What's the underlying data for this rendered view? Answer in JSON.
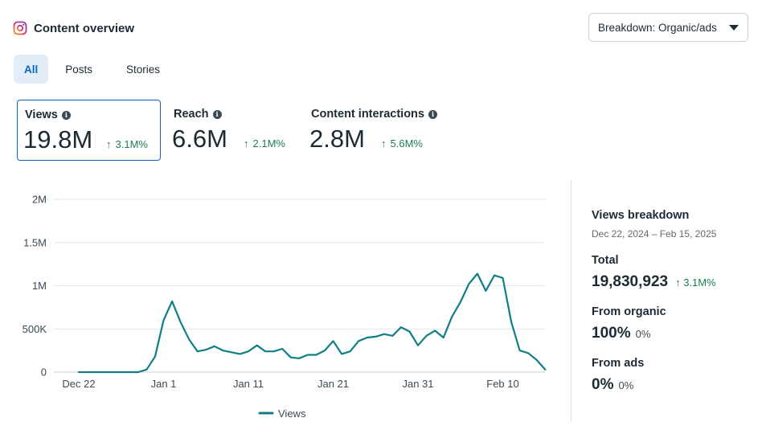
{
  "header": {
    "title": "Content overview",
    "icon": "instagram-icon"
  },
  "breakdown": {
    "label": "Breakdown: Organic/ads"
  },
  "tabs": [
    {
      "label": "All",
      "active": true
    },
    {
      "label": "Posts",
      "active": false
    },
    {
      "label": "Stories",
      "active": false
    }
  ],
  "metrics": [
    {
      "label": "Views",
      "value": "19.8M",
      "delta": "3.1M%",
      "selected": true
    },
    {
      "label": "Reach",
      "value": "6.6M",
      "delta": "2.1M%",
      "selected": false
    },
    {
      "label": "Content interactions",
      "value": "2.8M",
      "delta": "5.6M%",
      "selected": false
    }
  ],
  "breakdown_panel": {
    "title": "Views breakdown",
    "range": "Dec 22, 2024 – Feb 15, 2025",
    "total_label": "Total",
    "total_value": "19,830,923",
    "total_delta": "3.1M%",
    "organic_label": "From organic",
    "organic_value": "100%",
    "organic_delta": "0%",
    "ads_label": "From ads",
    "ads_value": "0%",
    "ads_delta": "0%"
  },
  "colors": {
    "line": "#0f7f86",
    "accent": "#0a66c2",
    "positive": "#1d7f50"
  },
  "chart_data": {
    "type": "line",
    "y_ticks": [
      "0",
      "500K",
      "1M",
      "1.5M",
      "2M"
    ],
    "ylim": [
      0,
      2000000
    ],
    "x_ticks": [
      "Dec 22",
      "Jan 1",
      "Jan 11",
      "Jan 21",
      "Jan 31",
      "Feb 10"
    ],
    "grid": true,
    "legend": "bottom",
    "series": [
      {
        "name": "Views",
        "start": "Dec 22",
        "values": [
          0,
          0,
          0,
          0,
          0,
          0,
          0,
          0,
          30000,
          180000,
          600000,
          820000,
          580000,
          380000,
          240000,
          260000,
          300000,
          250000,
          230000,
          210000,
          240000,
          310000,
          240000,
          240000,
          270000,
          170000,
          160000,
          200000,
          200000,
          250000,
          360000,
          210000,
          240000,
          360000,
          400000,
          410000,
          440000,
          420000,
          520000,
          470000,
          310000,
          420000,
          480000,
          400000,
          640000,
          810000,
          1020000,
          1140000,
          940000,
          1120000,
          1090000,
          580000,
          250000,
          220000,
          140000,
          30000
        ]
      }
    ]
  }
}
